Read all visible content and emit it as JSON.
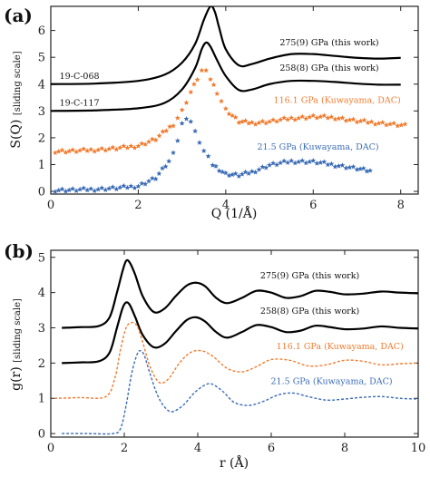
{
  "chart_data": [
    {
      "panel_label": "(a)",
      "type": "line",
      "xlabel": "Q (1/Å)",
      "ylabel": "S(Q)",
      "ylabel_note": "[sliding scale]",
      "xlim": [
        0,
        8.4
      ],
      "ylim": [
        -0.1,
        6.9
      ],
      "xticks": [
        0,
        2,
        4,
        6,
        8
      ],
      "yticks": [
        0,
        1,
        2,
        3,
        4,
        5,
        6
      ],
      "grid": false,
      "series": [
        {
          "name": "275(9) GPa (this work)",
          "color": "#000000",
          "style": "solid",
          "x": [
            0.0,
            1.0,
            2.0,
            2.6,
            3.0,
            3.3,
            3.5,
            3.65,
            3.75,
            3.85,
            4.0,
            4.3,
            4.6,
            5.0,
            5.5,
            6.0,
            6.5,
            7.0,
            7.5,
            8.0
          ],
          "y": [
            4.0,
            4.02,
            4.12,
            4.35,
            4.8,
            5.5,
            6.4,
            6.9,
            6.7,
            6.1,
            5.3,
            4.7,
            4.75,
            4.95,
            5.12,
            5.12,
            5.05,
            4.98,
            4.95,
            4.98
          ]
        },
        {
          "name": "258(8) GPa (this work)",
          "color": "#000000",
          "style": "solid",
          "x": [
            0.0,
            1.0,
            2.0,
            2.6,
            3.0,
            3.3,
            3.45,
            3.55,
            3.65,
            3.8,
            4.0,
            4.3,
            4.6,
            5.0,
            5.5,
            6.0,
            6.5,
            7.0,
            7.5,
            8.0
          ],
          "y": [
            3.0,
            3.02,
            3.1,
            3.3,
            3.8,
            4.6,
            5.3,
            5.55,
            5.4,
            4.9,
            4.3,
            3.78,
            3.8,
            4.0,
            4.12,
            4.12,
            4.08,
            4.02,
            3.98,
            3.98
          ]
        },
        {
          "name": "116.1 GPa (Kuwayama, DAC)",
          "color": "#f07b2e",
          "style": "markers",
          "x": [
            0.1,
            0.5,
            1.0,
            1.5,
            2.0,
            2.4,
            2.8,
            3.0,
            3.2,
            3.35,
            3.45,
            3.55,
            3.65,
            3.8,
            4.0,
            4.3,
            4.6,
            5.0,
            5.5,
            6.0,
            6.5,
            7.0,
            7.5,
            8.1
          ],
          "y": [
            1.5,
            1.5,
            1.55,
            1.6,
            1.7,
            1.95,
            2.5,
            3.0,
            3.7,
            4.2,
            4.5,
            4.45,
            4.2,
            3.7,
            3.05,
            2.6,
            2.55,
            2.6,
            2.72,
            2.78,
            2.75,
            2.62,
            2.55,
            2.45
          ]
        },
        {
          "name": "21.5 GPa (Kuwayama, DAC)",
          "color": "#3a6bb5",
          "style": "markers",
          "x": [
            0.1,
            0.5,
            1.0,
            1.5,
            2.0,
            2.4,
            2.7,
            2.9,
            3.0,
            3.1,
            3.2,
            3.3,
            3.5,
            3.7,
            4.0,
            4.3,
            4.6,
            5.0,
            5.5,
            6.0,
            6.5,
            7.0,
            7.3
          ],
          "y": [
            0.05,
            0.05,
            0.08,
            0.12,
            0.2,
            0.5,
            1.1,
            1.9,
            2.5,
            2.75,
            2.6,
            2.2,
            1.5,
            1.0,
            0.65,
            0.6,
            0.72,
            0.98,
            1.12,
            1.1,
            0.98,
            0.85,
            0.75
          ]
        }
      ],
      "annotations": [
        {
          "text": "275(9) GPa (this work)",
          "x": 7.5,
          "y": 5.45,
          "anchor": "end",
          "color": "#111111"
        },
        {
          "text": "258(8) GPa (this work)",
          "x": 7.5,
          "y": 4.5,
          "anchor": "end",
          "color": "#111111"
        },
        {
          "text": "116.1 GPa (Kuwayama, DAC)",
          "x": 8.0,
          "y": 3.3,
          "anchor": "end",
          "color": "#f07b2e"
        },
        {
          "text": "21.5 GPa (Kuwayama, DAC)",
          "x": 7.5,
          "y": 1.55,
          "anchor": "end",
          "color": "#3a6bb5"
        },
        {
          "text": "19-C-068",
          "x": 0.2,
          "y": 4.2,
          "anchor": "start",
          "color": "#111111"
        },
        {
          "text": "19-C-117",
          "x": 0.2,
          "y": 3.2,
          "anchor": "start",
          "color": "#111111"
        }
      ]
    },
    {
      "panel_label": "(b)",
      "type": "line",
      "xlabel": "r (Å)",
      "ylabel": "g(r)",
      "ylabel_note": "[sliding scale]",
      "xlim": [
        0,
        10
      ],
      "ylim": [
        -0.1,
        5.2
      ],
      "xticks": [
        0,
        2,
        4,
        6,
        8,
        10
      ],
      "yticks": [
        0,
        1,
        2,
        3,
        4,
        5
      ],
      "grid": false,
      "series": [
        {
          "name": "275(9) GPa (this work)",
          "color": "#000000",
          "style": "solid",
          "x": [
            0.3,
            0.8,
            1.3,
            1.6,
            1.8,
            1.95,
            2.05,
            2.15,
            2.3,
            2.5,
            2.8,
            3.1,
            3.4,
            3.7,
            3.95,
            4.2,
            4.5,
            4.8,
            5.2,
            5.6,
            6.0,
            6.4,
            6.8,
            7.2,
            7.6,
            8.0,
            8.5,
            9.0,
            9.5,
            10.0
          ],
          "y": [
            3.0,
            3.02,
            3.05,
            3.3,
            4.0,
            4.6,
            4.9,
            4.85,
            4.5,
            3.9,
            3.45,
            3.55,
            3.9,
            4.2,
            4.28,
            4.18,
            3.85,
            3.7,
            3.85,
            4.05,
            4.0,
            3.85,
            3.9,
            4.05,
            4.02,
            3.95,
            3.97,
            4.03,
            4.0,
            3.98
          ]
        },
        {
          "name": "258(8) GPa (this work)",
          "color": "#000000",
          "style": "solid",
          "x": [
            0.3,
            0.8,
            1.3,
            1.6,
            1.8,
            1.95,
            2.05,
            2.15,
            2.3,
            2.5,
            2.8,
            3.1,
            3.4,
            3.7,
            3.95,
            4.2,
            4.5,
            4.8,
            5.2,
            5.6,
            6.0,
            6.4,
            6.8,
            7.2,
            7.6,
            8.0,
            8.5,
            9.0,
            9.5,
            10.0
          ],
          "y": [
            2.0,
            2.02,
            2.05,
            2.3,
            3.0,
            3.55,
            3.72,
            3.65,
            3.3,
            2.8,
            2.45,
            2.55,
            2.9,
            3.22,
            3.3,
            3.18,
            2.88,
            2.72,
            2.88,
            3.08,
            3.02,
            2.88,
            2.92,
            3.06,
            3.02,
            2.96,
            2.98,
            3.04,
            3.0,
            2.98
          ]
        },
        {
          "name": "116.1 GPa (Kuwayama, DAC)",
          "color": "#f07b2e",
          "style": "dashed",
          "x": [
            0.1,
            0.8,
            1.5,
            1.75,
            1.9,
            2.05,
            2.2,
            2.35,
            2.5,
            2.7,
            2.95,
            3.2,
            3.5,
            3.8,
            4.1,
            4.4,
            4.8,
            5.2,
            5.6,
            6.0,
            6.5,
            7.0,
            7.5,
            8.0,
            8.5,
            9.0,
            9.5,
            10.0
          ],
          "y": [
            1.0,
            1.02,
            1.05,
            1.6,
            2.4,
            3.0,
            3.15,
            3.05,
            2.6,
            1.9,
            1.45,
            1.55,
            2.0,
            2.3,
            2.35,
            2.2,
            1.85,
            1.75,
            1.9,
            2.1,
            2.08,
            1.92,
            1.95,
            2.08,
            2.05,
            1.95,
            1.98,
            2.0
          ]
        },
        {
          "name": "21.5 GPa (Kuwayama, DAC)",
          "color": "#3a6bb5",
          "style": "dashed",
          "x": [
            0.3,
            1.0,
            1.7,
            1.9,
            2.05,
            2.2,
            2.35,
            2.45,
            2.55,
            2.7,
            2.9,
            3.1,
            3.3,
            3.6,
            3.9,
            4.2,
            4.4,
            4.7,
            5.0,
            5.4,
            5.8,
            6.2,
            6.6,
            7.0,
            7.5,
            8.0,
            8.5,
            9.0,
            9.5,
            10.0
          ],
          "y": [
            0.0,
            0.0,
            0.0,
            0.15,
            0.8,
            1.7,
            2.25,
            2.35,
            2.2,
            1.7,
            1.1,
            0.75,
            0.62,
            0.8,
            1.15,
            1.38,
            1.4,
            1.18,
            0.88,
            0.8,
            0.92,
            1.1,
            1.15,
            1.05,
            0.95,
            0.98,
            1.03,
            1.05,
            1.0,
            0.98
          ]
        }
      ],
      "annotations": [
        {
          "text": "275(9) GPa (this work)",
          "x": 8.4,
          "y": 4.4,
          "anchor": "end",
          "color": "#111111"
        },
        {
          "text": "258(8) GPa (this work)",
          "x": 8.4,
          "y": 3.4,
          "anchor": "end",
          "color": "#111111"
        },
        {
          "text": "116.1 GPa (Kuwayama, DAC)",
          "x": 9.6,
          "y": 2.4,
          "anchor": "end",
          "color": "#f07b2e"
        },
        {
          "text": "21.5 GPa (Kuwayama, DAC)",
          "x": 9.3,
          "y": 1.4,
          "anchor": "end",
          "color": "#3a6bb5"
        }
      ]
    }
  ]
}
